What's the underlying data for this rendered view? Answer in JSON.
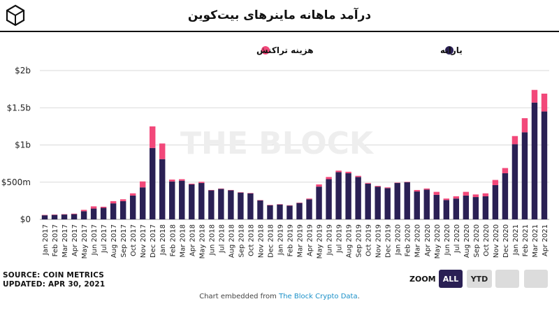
{
  "header": {
    "title": "درآمد ماهانه ماینرهای بیت‌کوین",
    "logo_icon": "block-cube-icon"
  },
  "chart_data": {
    "type": "bar",
    "stacked": true,
    "watermark": "THE BLOCK",
    "categories": [
      "Jan 2017",
      "Feb 2017",
      "Mar 2017",
      "Apr 2017",
      "May 2017",
      "Jun 2017",
      "Jul 2017",
      "Aug 2017",
      "Sep 2017",
      "Oct 2017",
      "Nov 2017",
      "Dec 2017",
      "Jan 2018",
      "Feb 2018",
      "Mar 2018",
      "Apr 2018",
      "May 2018",
      "Jun 2018",
      "Jul 2018",
      "Aug 2018",
      "Sep 2018",
      "Oct 2018",
      "Nov 2018",
      "Dec 2018",
      "Jan 2019",
      "Feb 2019",
      "Mar 2019",
      "Apr 2019",
      "May 2019",
      "Jun 2019",
      "Jul 2019",
      "Aug 2019",
      "Sep 2019",
      "Oct 2019",
      "Nov 2019",
      "Dec 2019",
      "Jan 2020",
      "Feb 2020",
      "Mar 2020",
      "Apr 2020",
      "May 2020",
      "Jun 2020",
      "Jul 2020",
      "Aug 2020",
      "Sep 2020",
      "Oct 2020",
      "Nov 2020",
      "Dec 2020",
      "Jan 2021",
      "Feb 2021",
      "Mar 2021",
      "Apr 2021"
    ],
    "series": [
      {
        "name": "یارانه",
        "color": "#2a2054",
        "values": [
          0.055,
          0.06,
          0.065,
          0.07,
          0.11,
          0.145,
          0.155,
          0.215,
          0.245,
          0.32,
          0.43,
          0.96,
          0.81,
          0.51,
          0.52,
          0.47,
          0.49,
          0.39,
          0.41,
          0.39,
          0.36,
          0.35,
          0.255,
          0.19,
          0.2,
          0.185,
          0.22,
          0.27,
          0.44,
          0.54,
          0.635,
          0.62,
          0.57,
          0.48,
          0.44,
          0.42,
          0.49,
          0.5,
          0.375,
          0.4,
          0.33,
          0.26,
          0.28,
          0.32,
          0.3,
          0.31,
          0.46,
          0.62,
          1.01,
          1.17,
          1.57,
          1.45
        ]
      },
      {
        "name": "هزینه تراکنش",
        "color": "#f2487a",
        "values": [
          0.005,
          0.005,
          0.005,
          0.007,
          0.018,
          0.03,
          0.015,
          0.03,
          0.025,
          0.03,
          0.08,
          0.29,
          0.21,
          0.025,
          0.02,
          0.01,
          0.015,
          0.005,
          0.005,
          0.005,
          0.005,
          0.005,
          0.005,
          0.005,
          0.005,
          0.005,
          0.005,
          0.01,
          0.03,
          0.03,
          0.02,
          0.02,
          0.015,
          0.01,
          0.01,
          0.01,
          0.005,
          0.005,
          0.02,
          0.015,
          0.04,
          0.02,
          0.03,
          0.05,
          0.035,
          0.04,
          0.07,
          0.07,
          0.11,
          0.19,
          0.17,
          0.24
        ]
      }
    ],
    "ylim": [
      0,
      2
    ],
    "yticks": [
      0,
      0.5,
      1,
      1.5,
      2
    ],
    "ytick_labels": [
      "$0",
      "$500m",
      "$1b",
      "$1.5b",
      "$2b"
    ],
    "grid": true,
    "legend_placement": "top"
  },
  "footer": {
    "source": "SOURCE: COIN METRICS",
    "updated": "UPDATED: APR 30, 2021",
    "embed_prefix": "Chart embedded from ",
    "embed_link": "The Block Crypto Data",
    "embed_suffix": "."
  },
  "zoom": {
    "label": "ZOOM",
    "buttons": [
      "ALL",
      "YTD",
      "",
      ""
    ],
    "active": "ALL"
  }
}
